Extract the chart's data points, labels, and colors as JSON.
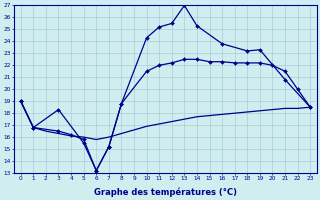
{
  "xlabel": "Graphe des températures (°C)",
  "ylim": [
    13,
    27
  ],
  "yticks": [
    13,
    14,
    15,
    16,
    17,
    18,
    19,
    20,
    21,
    22,
    23,
    24,
    25,
    26,
    27
  ],
  "xticks": [
    0,
    1,
    2,
    3,
    4,
    5,
    6,
    7,
    8,
    9,
    10,
    11,
    12,
    13,
    14,
    15,
    16,
    17,
    18,
    19,
    20,
    21,
    22,
    23
  ],
  "curve1_x": [
    0,
    1,
    3,
    5,
    6,
    7,
    8,
    10,
    11,
    12,
    13,
    14,
    16,
    18,
    19,
    21,
    23
  ],
  "curve1_y": [
    19.0,
    16.8,
    18.3,
    15.5,
    13.2,
    15.2,
    18.8,
    24.3,
    25.2,
    25.5,
    27.0,
    25.3,
    23.8,
    23.2,
    23.3,
    20.8,
    18.5
  ],
  "curve2_x": [
    0,
    1,
    3,
    4,
    5,
    6,
    7,
    8,
    10,
    11,
    12,
    13,
    14,
    15,
    16,
    17,
    18,
    19,
    20,
    21,
    22,
    23
  ],
  "curve2_y": [
    19.0,
    16.8,
    16.5,
    16.2,
    15.8,
    13.2,
    15.2,
    18.8,
    21.5,
    22.0,
    22.2,
    22.5,
    22.5,
    22.3,
    22.3,
    22.2,
    22.2,
    22.2,
    22.0,
    21.5,
    20.0,
    18.5
  ],
  "curve3_x": [
    0,
    1,
    2,
    3,
    4,
    5,
    6,
    7,
    8,
    9,
    10,
    11,
    12,
    13,
    14,
    15,
    16,
    17,
    18,
    19,
    20,
    21,
    22,
    23
  ],
  "curve3_y": [
    19.0,
    16.8,
    16.5,
    16.3,
    16.1,
    16.0,
    15.8,
    16.0,
    16.3,
    16.6,
    16.9,
    17.1,
    17.3,
    17.5,
    17.7,
    17.8,
    17.9,
    18.0,
    18.1,
    18.2,
    18.3,
    18.4,
    18.4,
    18.5
  ],
  "line_color": "#00008B",
  "bg_color": "#d0eef0",
  "grid_color": "#a8ccd8",
  "text_color": "#00008B"
}
